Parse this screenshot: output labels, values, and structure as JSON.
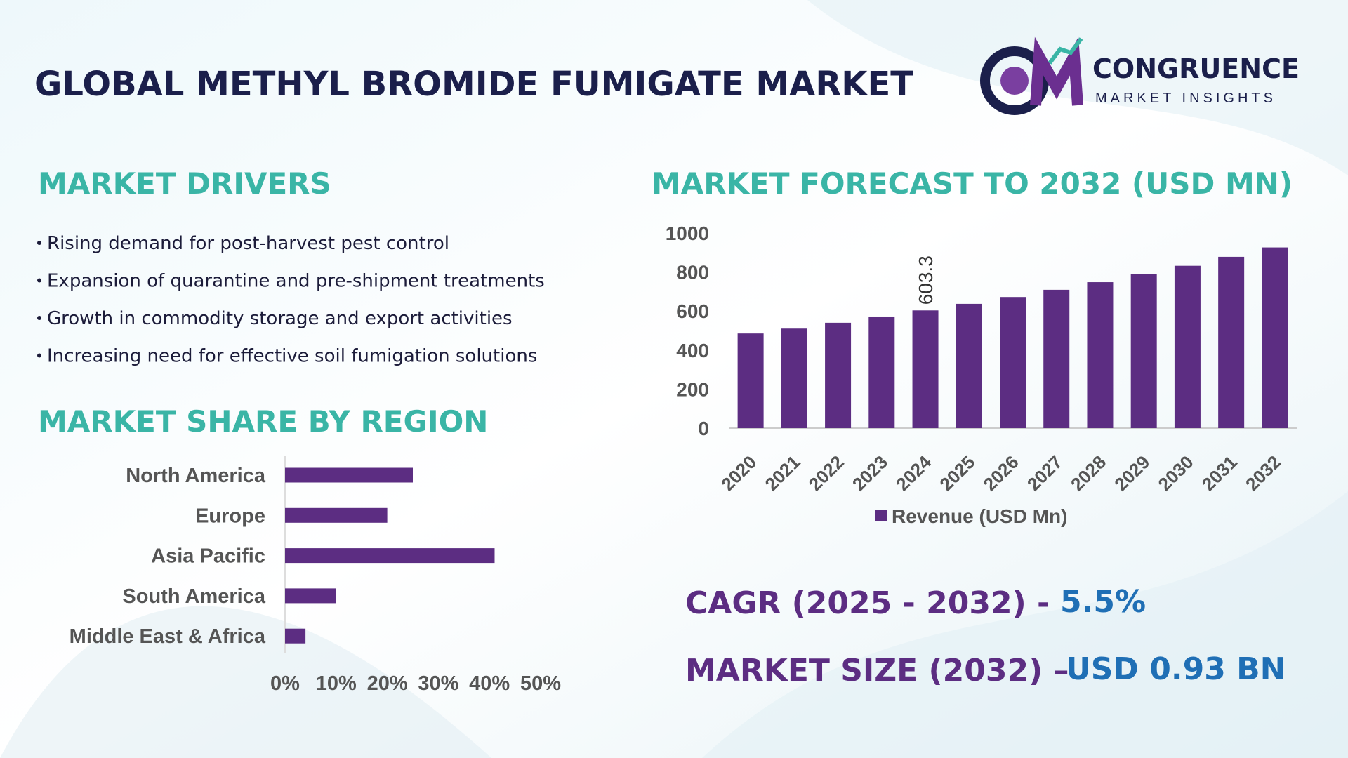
{
  "header": {
    "title": "GLOBAL METHYL BROMIDE FUMIGATE MARKET",
    "logo_name": "CONGRUENCE",
    "logo_tagline": "MARKET INSIGHTS"
  },
  "drivers": {
    "title": "MARKET DRIVERS",
    "items": [
      "Rising demand for post-harvest pest control",
      "Expansion of quarantine and pre-shipment treatments",
      "Growth in commodity storage and export activities",
      "Increasing need for effective soil fumigation solutions"
    ]
  },
  "chart_data": [
    {
      "type": "bar",
      "title": "MARKET FORECAST TO 2032 (USD MN)",
      "categories": [
        "2020",
        "2021",
        "2022",
        "2023",
        "2024",
        "2025",
        "2026",
        "2027",
        "2028",
        "2029",
        "2030",
        "2031",
        "2032"
      ],
      "series": [
        {
          "name": "Revenue (USD Mn)",
          "color": "#5c2d82",
          "values": [
            485,
            510,
            540,
            572,
            603.3,
            637,
            672,
            709,
            748,
            789,
            832,
            878,
            926
          ],
          "value_labels": [
            null,
            null,
            null,
            null,
            "603.3",
            null,
            null,
            null,
            null,
            null,
            null,
            null,
            null
          ]
        }
      ],
      "ylim": [
        0,
        1000
      ],
      "yticks": [
        0,
        200,
        400,
        600,
        800,
        1000
      ],
      "grid": false,
      "legend": "bottom"
    },
    {
      "type": "hbar",
      "title": "MARKET SHARE BY REGION",
      "categories": [
        "North America",
        "Europe",
        "Asia Pacific",
        "South America",
        "Middle East & Africa"
      ],
      "values": [
        25,
        20,
        41,
        10,
        4
      ],
      "color": "#5c2d82",
      "xlim": [
        0,
        50
      ],
      "xticks": [
        {
          "value": 0,
          "label": "0%"
        },
        {
          "value": 10,
          "label": "10%"
        },
        {
          "value": 20,
          "label": "20%"
        },
        {
          "value": 30,
          "label": "30%"
        },
        {
          "value": 40,
          "label": "40%"
        },
        {
          "value": 50,
          "label": "50%"
        }
      ]
    }
  ],
  "summary": {
    "cagr_label": "CAGR (2025 - 2032) -",
    "cagr_value": "5.5%",
    "size_label": "MARKET SIZE (2032) –",
    "size_value": "USD 0.93 BN"
  }
}
